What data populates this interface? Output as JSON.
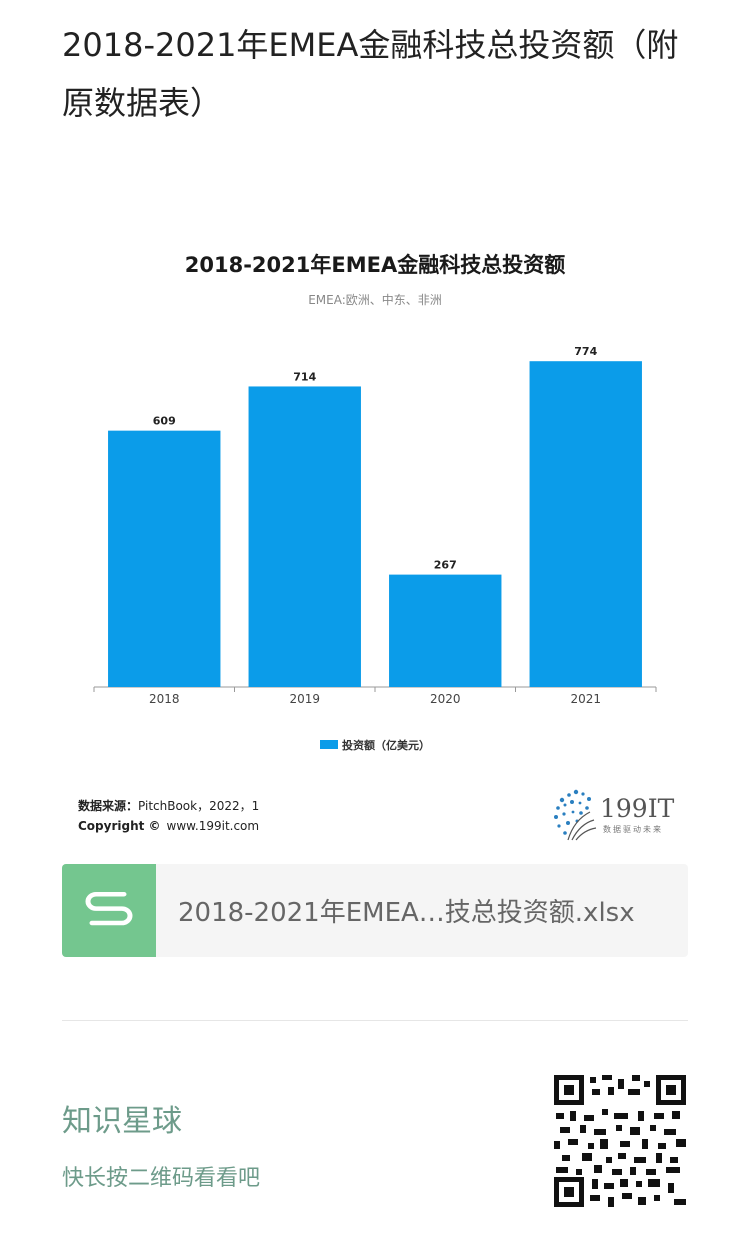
{
  "article": {
    "title": "2018-2021年EMEA金融科技总投资额（附原数据表）"
  },
  "chart_data": {
    "type": "bar",
    "title": "2018-2021年EMEA金融科技总投资额",
    "subtitle": "EMEA:欧洲、中东、非洲",
    "categories": [
      "2018",
      "2019",
      "2020",
      "2021"
    ],
    "series": [
      {
        "name": "投资额（亿美元）",
        "values": [
          609,
          714,
          267,
          774
        ]
      }
    ],
    "data_labels": [
      "609",
      "714",
      "267",
      "774"
    ],
    "ylim": [
      0,
      860
    ],
    "grid": false,
    "legend": "bottom",
    "bar_color": "#0b9ce9",
    "source_label": "数据来源：",
    "source_text": "PitchBook，2022，1",
    "copyright_label": "Copyright ©",
    "copyright_text": "www.199it.com",
    "logo_text": "199IT",
    "logo_tagline": "数据驱动未来"
  },
  "attachment": {
    "filename": "2018-2021年EMEA…技总投资额.xlsx",
    "icon": "wps-spreadsheet-icon",
    "icon_color": "#74c68f"
  },
  "footer": {
    "title": "知识星球",
    "subtitle": "快长按二维码看看吧",
    "text_color": "#6d9b8a",
    "qr_icon": "qr-code-icon"
  }
}
